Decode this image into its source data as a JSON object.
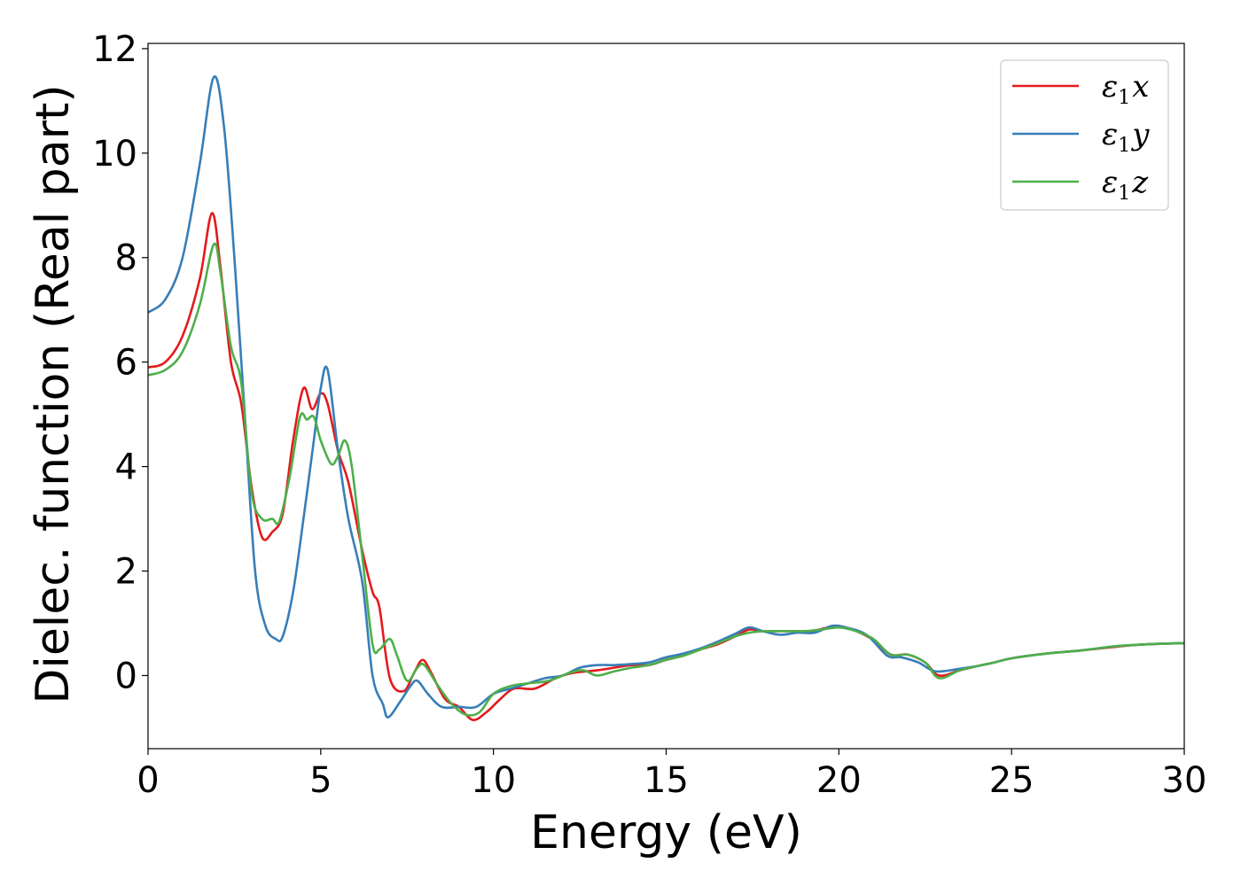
{
  "chart_data": {
    "type": "line",
    "xlabel": "Energy (eV)",
    "ylabel": "Dielec. function (Real part)",
    "xlim": [
      0,
      30
    ],
    "ylim": [
      -1.4,
      12.1
    ],
    "xticks": [
      0,
      5,
      10,
      15,
      20,
      25,
      30
    ],
    "yticks": [
      0,
      2,
      4,
      6,
      8,
      10,
      12
    ],
    "legend_position": "top-right",
    "grid": false,
    "series": [
      {
        "name": "ε1x",
        "legend_base": "ε",
        "legend_sub": "1",
        "legend_var": "x",
        "color": "#e41a1c",
        "points": [
          [
            0,
            5.9
          ],
          [
            0.5,
            6.0
          ],
          [
            1.0,
            6.5
          ],
          [
            1.5,
            7.6
          ],
          [
            1.85,
            8.85
          ],
          [
            2.1,
            7.8
          ],
          [
            2.4,
            6.0
          ],
          [
            2.7,
            5.2
          ],
          [
            3.0,
            3.6
          ],
          [
            3.3,
            2.65
          ],
          [
            3.6,
            2.75
          ],
          [
            3.9,
            3.1
          ],
          [
            4.2,
            4.5
          ],
          [
            4.5,
            5.5
          ],
          [
            4.75,
            5.1
          ],
          [
            5.0,
            5.4
          ],
          [
            5.2,
            5.2
          ],
          [
            5.5,
            4.3
          ],
          [
            5.8,
            3.7
          ],
          [
            6.2,
            2.4
          ],
          [
            6.5,
            1.6
          ],
          [
            6.7,
            1.3
          ],
          [
            7.0,
            -0.05
          ],
          [
            7.4,
            -0.3
          ],
          [
            7.7,
            0.05
          ],
          [
            7.95,
            0.3
          ],
          [
            8.2,
            0.05
          ],
          [
            8.6,
            -0.45
          ],
          [
            9.0,
            -0.6
          ],
          [
            9.4,
            -0.85
          ],
          [
            9.8,
            -0.7
          ],
          [
            10.2,
            -0.45
          ],
          [
            10.6,
            -0.25
          ],
          [
            11.2,
            -0.25
          ],
          [
            11.8,
            -0.05
          ],
          [
            12.3,
            0.05
          ],
          [
            13.0,
            0.1
          ],
          [
            13.5,
            0.15
          ],
          [
            14.0,
            0.2
          ],
          [
            14.5,
            0.2
          ],
          [
            15.0,
            0.3
          ],
          [
            15.5,
            0.38
          ],
          [
            16.0,
            0.5
          ],
          [
            16.5,
            0.6
          ],
          [
            17.0,
            0.75
          ],
          [
            17.4,
            0.88
          ],
          [
            17.8,
            0.85
          ],
          [
            18.3,
            0.85
          ],
          [
            18.8,
            0.85
          ],
          [
            19.2,
            0.85
          ],
          [
            19.7,
            0.92
          ],
          [
            20.0,
            0.95
          ],
          [
            20.5,
            0.85
          ],
          [
            21.0,
            0.68
          ],
          [
            21.5,
            0.4
          ],
          [
            22.0,
            0.4
          ],
          [
            22.5,
            0.25
          ],
          [
            22.9,
            0.0
          ],
          [
            23.5,
            0.1
          ],
          [
            24.0,
            0.18
          ],
          [
            24.5,
            0.25
          ],
          [
            25.0,
            0.33
          ],
          [
            26.0,
            0.42
          ],
          [
            27.0,
            0.48
          ],
          [
            28.0,
            0.55
          ],
          [
            28.5,
            0.58
          ],
          [
            29.0,
            0.6
          ],
          [
            30.0,
            0.62
          ]
        ]
      },
      {
        "name": "ε1y",
        "legend_base": "ε",
        "legend_sub": "1",
        "legend_var": "y",
        "color": "#377eb8",
        "points": [
          [
            0,
            6.95
          ],
          [
            0.5,
            7.2
          ],
          [
            1.0,
            8.0
          ],
          [
            1.5,
            9.8
          ],
          [
            1.9,
            11.45
          ],
          [
            2.2,
            10.5
          ],
          [
            2.5,
            8.0
          ],
          [
            2.8,
            5.0
          ],
          [
            3.1,
            2.0
          ],
          [
            3.4,
            0.95
          ],
          [
            3.7,
            0.7
          ],
          [
            3.9,
            0.75
          ],
          [
            4.2,
            1.6
          ],
          [
            4.5,
            3.0
          ],
          [
            4.8,
            4.5
          ],
          [
            5.0,
            5.5
          ],
          [
            5.2,
            5.85
          ],
          [
            5.5,
            4.3
          ],
          [
            5.8,
            3.0
          ],
          [
            6.2,
            1.8
          ],
          [
            6.5,
            0.0
          ],
          [
            6.8,
            -0.55
          ],
          [
            6.95,
            -0.8
          ],
          [
            7.3,
            -0.5
          ],
          [
            7.6,
            -0.2
          ],
          [
            7.8,
            -0.1
          ],
          [
            8.1,
            -0.35
          ],
          [
            8.5,
            -0.6
          ],
          [
            9.0,
            -0.6
          ],
          [
            9.5,
            -0.6
          ],
          [
            10.0,
            -0.35
          ],
          [
            10.5,
            -0.25
          ],
          [
            11.0,
            -0.15
          ],
          [
            11.5,
            -0.05
          ],
          [
            12.0,
            0.0
          ],
          [
            12.5,
            0.15
          ],
          [
            13.0,
            0.2
          ],
          [
            13.5,
            0.2
          ],
          [
            14.0,
            0.22
          ],
          [
            14.5,
            0.25
          ],
          [
            15.0,
            0.35
          ],
          [
            15.5,
            0.42
          ],
          [
            16.0,
            0.52
          ],
          [
            16.5,
            0.65
          ],
          [
            17.0,
            0.8
          ],
          [
            17.4,
            0.92
          ],
          [
            17.8,
            0.85
          ],
          [
            18.3,
            0.78
          ],
          [
            18.8,
            0.82
          ],
          [
            19.3,
            0.82
          ],
          [
            19.8,
            0.95
          ],
          [
            20.2,
            0.92
          ],
          [
            20.8,
            0.78
          ],
          [
            21.4,
            0.38
          ],
          [
            21.8,
            0.35
          ],
          [
            22.3,
            0.25
          ],
          [
            22.8,
            0.08
          ],
          [
            23.5,
            0.13
          ],
          [
            24.0,
            0.18
          ],
          [
            24.5,
            0.25
          ],
          [
            25.0,
            0.33
          ],
          [
            26.0,
            0.42
          ],
          [
            27.0,
            0.48
          ],
          [
            28.0,
            0.56
          ],
          [
            29.0,
            0.6
          ],
          [
            30.0,
            0.62
          ]
        ]
      },
      {
        "name": "ε1z",
        "legend_base": "ε",
        "legend_sub": "1",
        "legend_var": "z",
        "color": "#4daf4a",
        "points": [
          [
            0,
            5.75
          ],
          [
            0.5,
            5.85
          ],
          [
            1.0,
            6.2
          ],
          [
            1.5,
            7.1
          ],
          [
            1.9,
            8.25
          ],
          [
            2.1,
            7.7
          ],
          [
            2.4,
            6.3
          ],
          [
            2.7,
            5.6
          ],
          [
            3.0,
            3.5
          ],
          [
            3.3,
            3.0
          ],
          [
            3.6,
            3.0
          ],
          [
            3.8,
            2.95
          ],
          [
            4.1,
            3.8
          ],
          [
            4.4,
            4.95
          ],
          [
            4.6,
            4.9
          ],
          [
            4.8,
            4.95
          ],
          [
            5.0,
            4.5
          ],
          [
            5.3,
            4.05
          ],
          [
            5.5,
            4.2
          ],
          [
            5.7,
            4.5
          ],
          [
            5.9,
            4.0
          ],
          [
            6.2,
            2.3
          ],
          [
            6.5,
            0.6
          ],
          [
            6.7,
            0.5
          ],
          [
            7.0,
            0.7
          ],
          [
            7.2,
            0.4
          ],
          [
            7.5,
            -0.1
          ],
          [
            7.8,
            0.15
          ],
          [
            8.0,
            0.2
          ],
          [
            8.4,
            -0.2
          ],
          [
            8.8,
            -0.55
          ],
          [
            9.2,
            -0.75
          ],
          [
            9.6,
            -0.7
          ],
          [
            10.0,
            -0.35
          ],
          [
            10.5,
            -0.2
          ],
          [
            11.0,
            -0.15
          ],
          [
            11.6,
            -0.1
          ],
          [
            12.2,
            0.05
          ],
          [
            12.6,
            0.1
          ],
          [
            13.0,
            0.0
          ],
          [
            13.5,
            0.08
          ],
          [
            14.0,
            0.15
          ],
          [
            14.5,
            0.2
          ],
          [
            15.0,
            0.3
          ],
          [
            15.5,
            0.38
          ],
          [
            16.0,
            0.5
          ],
          [
            16.5,
            0.62
          ],
          [
            17.0,
            0.75
          ],
          [
            17.5,
            0.83
          ],
          [
            18.0,
            0.85
          ],
          [
            18.5,
            0.85
          ],
          [
            19.0,
            0.85
          ],
          [
            19.5,
            0.88
          ],
          [
            20.0,
            0.92
          ],
          [
            20.5,
            0.85
          ],
          [
            21.0,
            0.7
          ],
          [
            21.5,
            0.4
          ],
          [
            22.0,
            0.4
          ],
          [
            22.5,
            0.25
          ],
          [
            22.9,
            -0.05
          ],
          [
            23.5,
            0.1
          ],
          [
            24.0,
            0.18
          ],
          [
            24.5,
            0.25
          ],
          [
            25.0,
            0.33
          ],
          [
            26.0,
            0.42
          ],
          [
            27.0,
            0.48
          ],
          [
            28.0,
            0.56
          ],
          [
            29.0,
            0.6
          ],
          [
            30.0,
            0.62
          ]
        ]
      }
    ]
  }
}
